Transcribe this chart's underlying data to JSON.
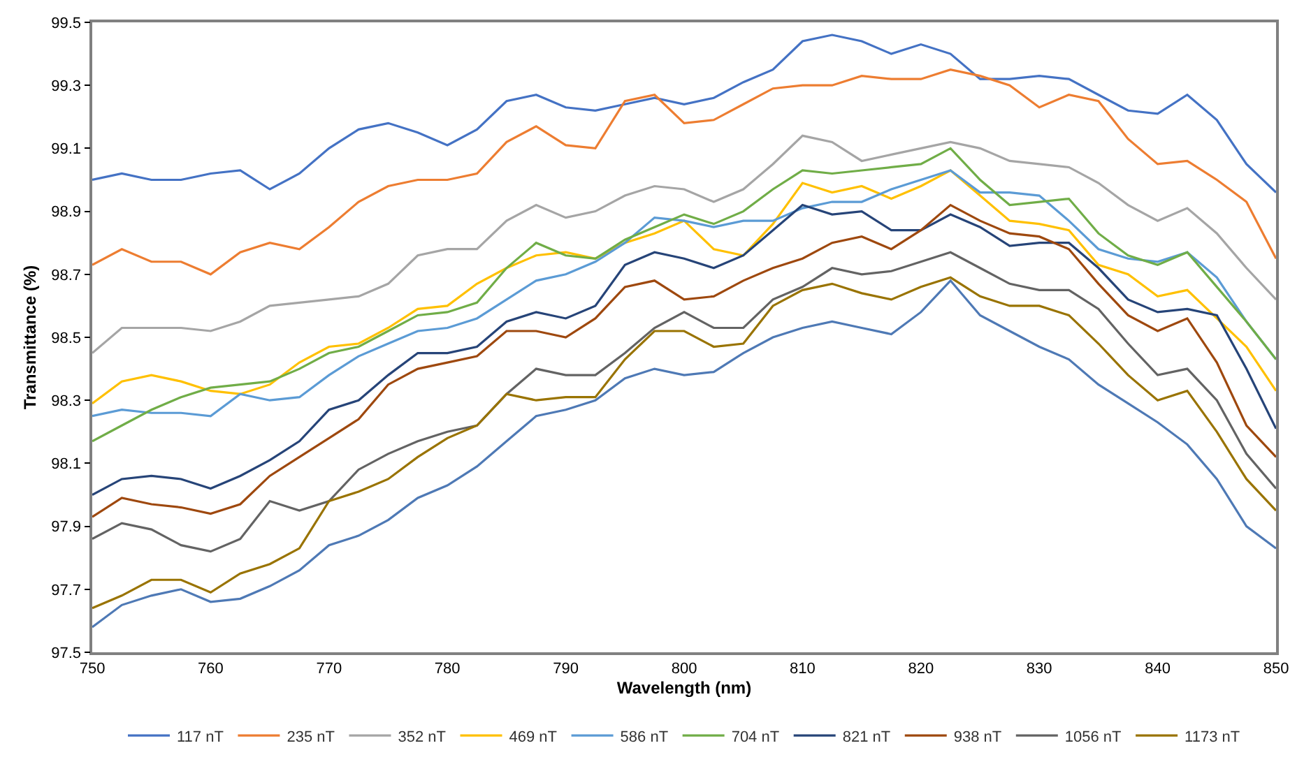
{
  "chart_data": {
    "type": "line",
    "xlabel": "Wavelength (nm)",
    "ylabel": "Transmittance (%)",
    "x": [
      750,
      752.5,
      755,
      757.5,
      760,
      762.5,
      765,
      767.5,
      770,
      772.5,
      775,
      777.5,
      780,
      782.5,
      785,
      787.5,
      790,
      792.5,
      795,
      797.5,
      800,
      802.5,
      805,
      807.5,
      810,
      812.5,
      815,
      817.5,
      820,
      822.5,
      825,
      827.5,
      830,
      832.5,
      835,
      837.5,
      840,
      842.5,
      845,
      847.5,
      850
    ],
    "xlim": [
      750,
      850
    ],
    "xticks": [
      750,
      760,
      770,
      780,
      790,
      800,
      810,
      820,
      830,
      840,
      850
    ],
    "ylim": [
      97.5,
      99.5
    ],
    "yticks": [
      {
        "value": 97.5,
        "label": "97.5"
      },
      {
        "value": 97.7,
        "label": "97.7"
      },
      {
        "value": 97.9,
        "label": "97.9"
      },
      {
        "value": 98.1,
        "label": "98.1"
      },
      {
        "value": 98.3,
        "label": "98.3"
      },
      {
        "value": 98.5,
        "label": "98.5"
      },
      {
        "value": 98.7,
        "label": "98.7"
      },
      {
        "value": 98.9,
        "label": "98.9"
      },
      {
        "value": 99.1,
        "label": "99.1"
      },
      {
        "value": 99.3,
        "label": "99.3"
      },
      {
        "value": 99.5,
        "label": "99.5"
      }
    ],
    "grid": false,
    "legend": "bottom",
    "line_style": "solid",
    "series": [
      {
        "name": "117 nT",
        "color": "#4472c4",
        "values": [
          99.0,
          99.02,
          99.0,
          99.0,
          99.02,
          99.03,
          98.97,
          99.02,
          99.1,
          99.16,
          99.18,
          99.15,
          99.11,
          99.16,
          99.25,
          99.27,
          99.23,
          99.22,
          99.24,
          99.26,
          99.24,
          99.26,
          99.31,
          99.35,
          99.44,
          99.46,
          99.44,
          99.4,
          99.43,
          99.4,
          99.32,
          99.32,
          99.33,
          99.32,
          99.27,
          99.22,
          99.21,
          99.27,
          99.19,
          99.05,
          98.96
        ]
      },
      {
        "name": "235 nT",
        "color": "#ed7d31",
        "values": [
          98.73,
          98.78,
          98.74,
          98.74,
          98.7,
          98.77,
          98.8,
          98.78,
          98.85,
          98.93,
          98.98,
          99.0,
          99.0,
          99.02,
          99.12,
          99.17,
          99.11,
          99.1,
          99.25,
          99.27,
          99.18,
          99.19,
          99.24,
          99.29,
          99.3,
          99.3,
          99.33,
          99.32,
          99.32,
          99.35,
          99.33,
          99.3,
          99.23,
          99.27,
          99.25,
          99.13,
          99.05,
          99.06,
          99.0,
          98.93,
          98.75
        ]
      },
      {
        "name": "352 nT",
        "color": "#a5a5a5",
        "values": [
          98.45,
          98.53,
          98.53,
          98.53,
          98.52,
          98.55,
          98.6,
          98.61,
          98.62,
          98.63,
          98.67,
          98.76,
          98.78,
          98.78,
          98.87,
          98.92,
          98.88,
          98.9,
          98.95,
          98.98,
          98.97,
          98.93,
          98.97,
          99.05,
          99.14,
          99.12,
          99.06,
          99.08,
          99.1,
          99.12,
          99.1,
          99.06,
          99.05,
          99.04,
          98.99,
          98.92,
          98.87,
          98.91,
          98.83,
          98.72,
          98.62
        ]
      },
      {
        "name": "469 nT",
        "color": "#ffc000",
        "values": [
          98.29,
          98.36,
          98.38,
          98.36,
          98.33,
          98.32,
          98.35,
          98.42,
          98.47,
          98.48,
          98.53,
          98.59,
          98.6,
          98.67,
          98.72,
          98.76,
          98.77,
          98.75,
          98.8,
          98.83,
          98.87,
          98.78,
          98.76,
          98.86,
          98.99,
          98.96,
          98.98,
          98.94,
          98.98,
          99.03,
          98.95,
          98.87,
          98.86,
          98.84,
          98.73,
          98.7,
          98.63,
          98.65,
          98.56,
          98.47,
          98.33
        ]
      },
      {
        "name": "586 nT",
        "color": "#5b9bd5",
        "values": [
          98.25,
          98.27,
          98.26,
          98.26,
          98.25,
          98.32,
          98.3,
          98.31,
          98.38,
          98.44,
          98.48,
          98.52,
          98.53,
          98.56,
          98.62,
          98.68,
          98.7,
          98.74,
          98.8,
          98.88,
          98.87,
          98.85,
          98.87,
          98.87,
          98.91,
          98.93,
          98.93,
          98.97,
          99.0,
          99.03,
          98.96,
          98.96,
          98.95,
          98.87,
          98.78,
          98.75,
          98.74,
          98.77,
          98.69,
          98.55,
          98.43
        ]
      },
      {
        "name": "704 nT",
        "color": "#70ad47",
        "values": [
          98.17,
          98.22,
          98.27,
          98.31,
          98.34,
          98.35,
          98.36,
          98.4,
          98.45,
          98.47,
          98.52,
          98.57,
          98.58,
          98.61,
          98.72,
          98.8,
          98.76,
          98.75,
          98.81,
          98.85,
          98.89,
          98.86,
          98.9,
          98.97,
          99.03,
          99.02,
          99.03,
          99.04,
          99.05,
          99.1,
          99.0,
          98.92,
          98.93,
          98.94,
          98.83,
          98.76,
          98.73,
          98.77,
          98.66,
          98.55,
          98.43
        ]
      },
      {
        "name": "821 nT",
        "color": "#264478",
        "values": [
          98.0,
          98.05,
          98.06,
          98.05,
          98.02,
          98.06,
          98.11,
          98.17,
          98.27,
          98.3,
          98.38,
          98.45,
          98.45,
          98.47,
          98.55,
          98.58,
          98.56,
          98.6,
          98.73,
          98.77,
          98.75,
          98.72,
          98.76,
          98.84,
          98.92,
          98.89,
          98.9,
          98.84,
          98.84,
          98.89,
          98.85,
          98.79,
          98.8,
          98.8,
          98.72,
          98.62,
          98.58,
          98.59,
          98.57,
          98.4,
          98.21
        ]
      },
      {
        "name": "938 nT",
        "color": "#9e480e",
        "values": [
          97.93,
          97.99,
          97.97,
          97.96,
          97.94,
          97.97,
          98.06,
          98.12,
          98.18,
          98.24,
          98.35,
          98.4,
          98.42,
          98.44,
          98.52,
          98.52,
          98.5,
          98.56,
          98.66,
          98.68,
          98.62,
          98.63,
          98.68,
          98.72,
          98.75,
          98.8,
          98.82,
          98.78,
          98.84,
          98.92,
          98.87,
          98.83,
          98.82,
          98.78,
          98.67,
          98.57,
          98.52,
          98.56,
          98.42,
          98.22,
          98.12
        ]
      },
      {
        "name": "1056 nT",
        "color": "#636363",
        "values": [
          97.86,
          97.91,
          97.89,
          97.84,
          97.82,
          97.86,
          97.98,
          97.95,
          97.98,
          98.08,
          98.13,
          98.17,
          98.2,
          98.22,
          98.32,
          98.4,
          98.38,
          98.38,
          98.45,
          98.53,
          98.58,
          98.53,
          98.53,
          98.62,
          98.66,
          98.72,
          98.7,
          98.71,
          98.74,
          98.77,
          98.72,
          98.67,
          98.65,
          98.65,
          98.59,
          98.48,
          98.38,
          98.4,
          98.3,
          98.13,
          98.02
        ]
      },
      {
        "name": "1173 nT",
        "color": "#997300",
        "values": [
          97.64,
          97.68,
          97.73,
          97.73,
          97.69,
          97.75,
          97.78,
          97.83,
          97.98,
          98.01,
          98.05,
          98.12,
          98.18,
          98.22,
          98.32,
          98.3,
          98.31,
          98.31,
          98.43,
          98.52,
          98.52,
          98.47,
          98.48,
          98.6,
          98.65,
          98.67,
          98.64,
          98.62,
          98.66,
          98.69,
          98.63,
          98.6,
          98.6,
          98.57,
          98.48,
          98.38,
          98.3,
          98.33,
          98.2,
          98.05,
          97.95
        ]
      },
      {
        "color": "#4e79b5",
        "values": [
          97.58,
          97.65,
          97.68,
          97.7,
          97.66,
          97.67,
          97.71,
          97.76,
          97.84,
          97.87,
          97.92,
          97.99,
          98.03,
          98.09,
          98.17,
          98.25,
          98.27,
          98.3,
          98.37,
          98.4,
          98.38,
          98.39,
          98.45,
          98.5,
          98.53,
          98.55,
          98.53,
          98.51,
          98.58,
          98.68,
          98.57,
          98.52,
          98.47,
          98.43,
          98.35,
          98.29,
          98.23,
          98.16,
          98.05,
          97.9,
          97.83
        ]
      }
    ]
  }
}
